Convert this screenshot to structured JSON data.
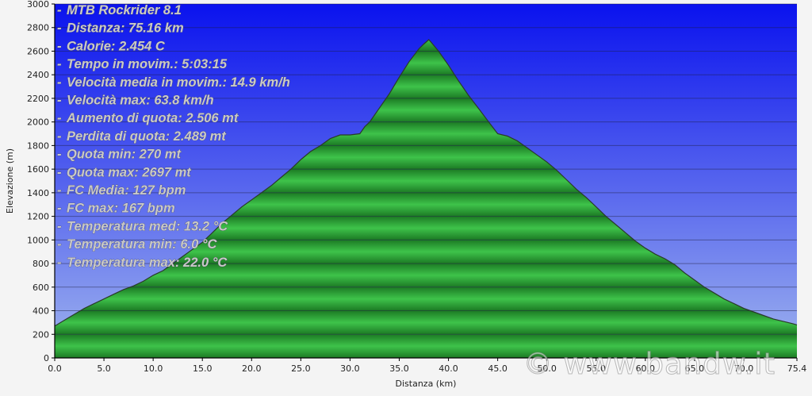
{
  "chart_data": {
    "type": "area",
    "xlabel": "Distanza  (km)",
    "ylabel": "Elevazione (m)",
    "xlim": [
      0,
      75.4
    ],
    "ylim": [
      0,
      3000
    ],
    "xticks": [
      0,
      5,
      10,
      15,
      20,
      25,
      30,
      35,
      40,
      45,
      50,
      55,
      60,
      65,
      70,
      75.4
    ],
    "xtick_labels": [
      "0.0",
      "5.0",
      "10.0",
      "15.0",
      "20.0",
      "25.0",
      "30.0",
      "35.0",
      "40.0",
      "45.0",
      "50.0",
      "55.0",
      "60.0",
      "65.0",
      "70.0",
      "75.4"
    ],
    "yticks": [
      0,
      200,
      400,
      600,
      800,
      1000,
      1200,
      1400,
      1600,
      1800,
      2000,
      2200,
      2400,
      2600,
      2800,
      3000
    ],
    "grid": true,
    "fill_colors": {
      "edge": "#1c7a24",
      "center": "#3ec34a",
      "outline": "#2a3a2a"
    },
    "background_colors": {
      "top": "#0a12ee",
      "bottom": "#9fb4ee"
    },
    "series": [
      {
        "x": [
          0.0,
          1.0,
          2.0,
          3.0,
          4.0,
          5.0,
          6.0,
          7.0,
          8.0,
          9.0,
          10.0,
          11.0,
          12.0,
          13.0,
          14.0,
          15.0,
          16.0,
          17.0,
          18.0,
          19.0,
          20.0,
          21.0,
          22.0,
          23.0,
          24.0,
          25.0,
          26.0,
          27.0,
          28.0,
          29.0,
          30.0,
          31.0,
          31.5,
          32.0,
          33.0,
          34.0,
          35.0,
          36.0,
          37.0,
          37.5,
          38.0,
          38.2,
          39.0,
          40.0,
          41.0,
          42.0,
          43.0,
          44.0,
          45.0,
          45.5,
          46.0,
          47.0,
          48.0,
          49.0,
          50.0,
          51.0,
          52.0,
          53.0,
          54.0,
          55.0,
          56.0,
          57.0,
          58.0,
          59.0,
          60.0,
          61.0,
          62.0,
          63.0,
          64.0,
          65.0,
          66.0,
          67.0,
          68.0,
          69.0,
          70.0,
          71.0,
          72.0,
          73.0,
          74.0,
          75.0,
          75.4
        ],
        "y": [
          270,
          320,
          370,
          420,
          460,
          500,
          540,
          580,
          610,
          650,
          700,
          740,
          800,
          860,
          920,
          980,
          1060,
          1140,
          1210,
          1280,
          1340,
          1400,
          1460,
          1530,
          1600,
          1680,
          1750,
          1800,
          1860,
          1890,
          1890,
          1900,
          1960,
          2000,
          2120,
          2240,
          2380,
          2510,
          2620,
          2660,
          2697,
          2680,
          2600,
          2480,
          2350,
          2230,
          2120,
          2010,
          1900,
          1890,
          1880,
          1840,
          1780,
          1720,
          1660,
          1590,
          1510,
          1430,
          1360,
          1280,
          1200,
          1130,
          1060,
          990,
          930,
          880,
          840,
          790,
          720,
          660,
          600,
          550,
          500,
          460,
          420,
          390,
          360,
          330,
          310,
          290,
          280
        ]
      }
    ]
  },
  "stats": [
    "MTB Rockrider 8.1",
    "Distanza: 75.16 km",
    "Calorie: 2.454 C",
    "Tempo in movim.: 5:03:15",
    "Velocità media in movim.: 14.9 km/h",
    "Velocità max: 63.8 km/h",
    "Aumento di quota: 2.506 mt",
    "Perdita di quota: 2.489 mt",
    "Quota min: 270 mt",
    "Quota max: 2697 mt",
    "FC Media: 127 bpm",
    "FC max: 167 bpm",
    "Temperatura med: 13.2 °C",
    "Temperatura min: 6.0 °C",
    "Temperatura max: 22.0 °C"
  ],
  "watermark": "© www.bandw.it"
}
